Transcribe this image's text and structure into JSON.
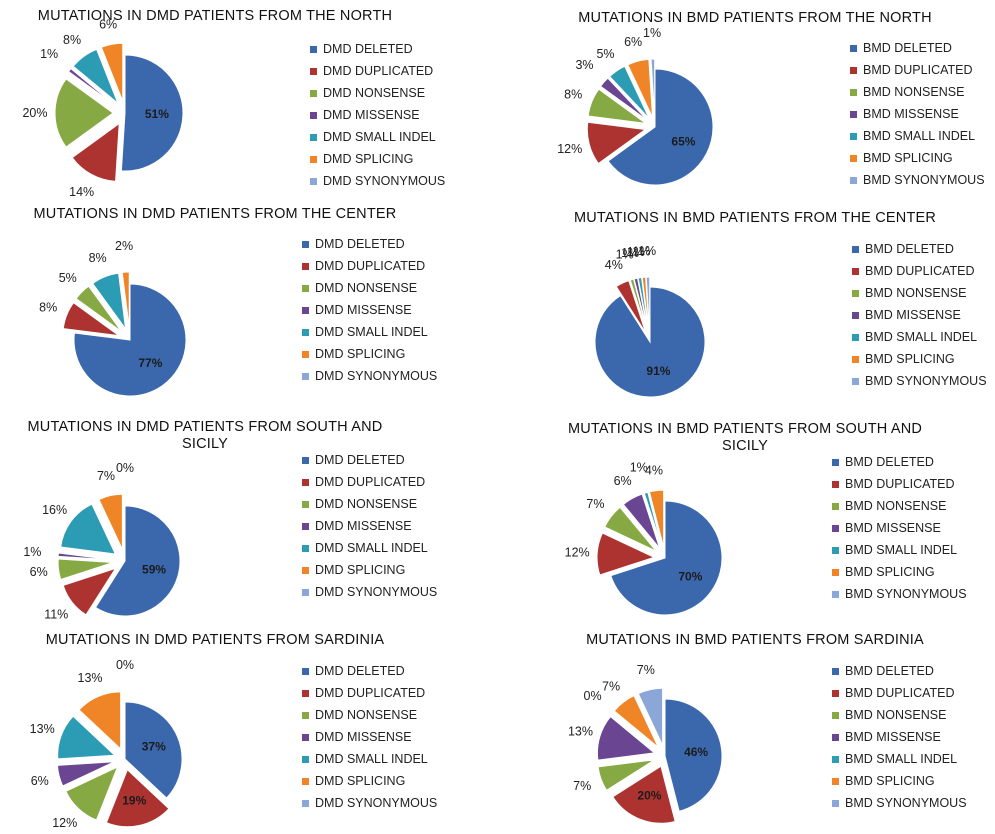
{
  "colors": {
    "deleted": "#3b68ad",
    "duplicated": "#ad3331",
    "nonsense": "#86a943",
    "missense": "#6a4592",
    "small_indel": "#2c9bb4",
    "splicing": "#ef8526",
    "synonymous": "#8aa7d8"
  },
  "chart_data": [
    {
      "type": "pie",
      "title": "MUTATIONS IN DMD PATIENTS FROM THE NORTH",
      "categories": [
        "DMD DELETED",
        "DMD DUPLICATED",
        "DMD NONSENSE",
        "DMD MISSENSE",
        "DMD SMALL INDEL",
        "DMD SPLICING",
        "DMD SYNONYMOUS"
      ],
      "values": [
        51,
        14,
        20,
        1,
        8,
        6,
        0
      ],
      "labels": [
        "51%",
        "14%",
        "20%",
        "1%",
        "8%",
        "6%",
        ""
      ],
      "legend": "right"
    },
    {
      "type": "pie",
      "title": "MUTATIONS IN BMD PATIENTS FROM THE NORTH",
      "categories": [
        "BMD DELETED",
        "BMD DUPLICATED",
        "BMD NONSENSE",
        "BMD MISSENSE",
        "BMD SMALL INDEL",
        "BMD SPLICING",
        "BMD SYNONYMOUS"
      ],
      "values": [
        65,
        12,
        8,
        3,
        5,
        6,
        1
      ],
      "labels": [
        "65%",
        "12%",
        "8%",
        "3%",
        "5%",
        "6%",
        "1%"
      ],
      "legend": "right"
    },
    {
      "type": "pie",
      "title": "MUTATIONS IN DMD PATIENTS  FROM THE CENTER",
      "categories": [
        "DMD DELETED",
        "DMD DUPLICATED",
        "DMD NONSENSE",
        "DMD MISSENSE",
        "DMD SMALL INDEL",
        "DMD SPLICING",
        "DMD SYNONYMOUS"
      ],
      "values": [
        77,
        8,
        5,
        0,
        8,
        2,
        0
      ],
      "labels": [
        "77%",
        "8%",
        "5%",
        "",
        "8%",
        "2%",
        ""
      ],
      "legend": "right"
    },
    {
      "type": "pie",
      "title": "MUTATIONS IN BMD PATIENTS  FROM THE CENTER",
      "categories": [
        "BMD DELETED",
        "BMD DUPLICATED",
        "BMD NONSENSE",
        "BMD MISSENSE",
        "BMD SMALL INDEL",
        "BMD SPLICING",
        "BMD SYNONYMOUS"
      ],
      "values": [
        91,
        4,
        1,
        1,
        1,
        1,
        1
      ],
      "labels": [
        "91%",
        "4%",
        "1%",
        "1%",
        "1%",
        "1%",
        "1%"
      ],
      "legend": "right"
    },
    {
      "type": "pie",
      "title": "MUTATIONS IN DMD PATIENTS FROM SOUTH AND SICILY",
      "categories": [
        "DMD DELETED",
        "DMD DUPLICATED",
        "DMD NONSENSE",
        "DMD MISSENSE",
        "DMD SMALL INDEL",
        "DMD SPLICING",
        "DMD SYNONYMOUS"
      ],
      "values": [
        59,
        11,
        6,
        1,
        16,
        7,
        0
      ],
      "labels": [
        "59%",
        "11%",
        "6%",
        "1%",
        "16%",
        "7%",
        "0%"
      ],
      "legend": "right"
    },
    {
      "type": "pie",
      "title": "MUTATIONS IN BMD PATIENTS FROM SOUTH AND SICILY",
      "categories": [
        "BMD DELETED",
        "BMD DUPLICATED",
        "BMD NONSENSE",
        "BMD MISSENSE",
        "BMD SMALL INDEL",
        "BMD SPLICING",
        "BMD SYNONYMOUS"
      ],
      "values": [
        70,
        12,
        7,
        6,
        1,
        4,
        0
      ],
      "labels": [
        "70%",
        "12%",
        "7%",
        "6%",
        "1%",
        "4%",
        ""
      ],
      "legend": "right"
    },
    {
      "type": "pie",
      "title": "MUTATIONS IN DMD PATIENTS FROM SARDINIA",
      "categories": [
        "DMD DELETED",
        "DMD DUPLICATED",
        "DMD NONSENSE",
        "DMD MISSENSE",
        "DMD SMALL INDEL",
        "DMD SPLICING",
        "DMD SYNONYMOUS"
      ],
      "values": [
        37,
        19,
        12,
        6,
        13,
        13,
        0
      ],
      "labels": [
        "37%",
        "19%",
        "12%",
        "6%",
        "13%",
        "13%",
        "0%"
      ],
      "legend": "right"
    },
    {
      "type": "pie",
      "title": "MUTATIONS IN BMD PATIENTS FROM SARDINIA",
      "categories": [
        "BMD DELETED",
        "BMD DUPLICATED",
        "BMD NONSENSE",
        "BMD MISSENSE",
        "BMD SMALL INDEL",
        "BMD SPLICING",
        "BMD SYNONYMOUS"
      ],
      "values": [
        46,
        20,
        7,
        13,
        0,
        7,
        7
      ],
      "labels": [
        "46%",
        "20%",
        "7%",
        "13%",
        "0%",
        "7%",
        "7%"
      ],
      "legend": "right"
    }
  ]
}
